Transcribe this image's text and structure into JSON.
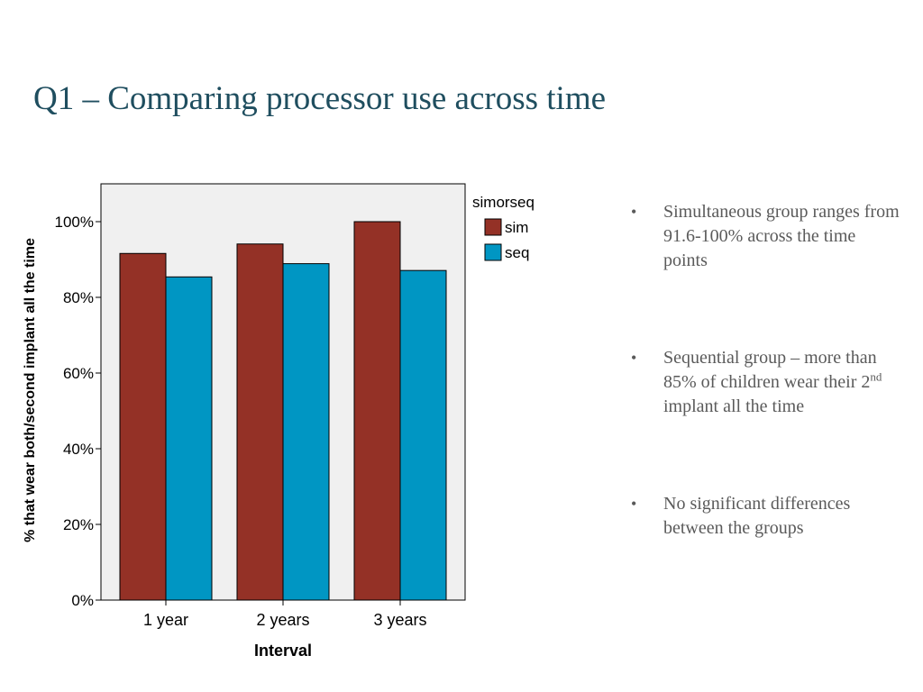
{
  "slide": {
    "title": "Q1 – Comparing processor use across time"
  },
  "bullets": [
    {
      "text": "Simultaneous group ranges from 91.6-100% across the time points"
    },
    {
      "text_before": "Sequential group – more than 85% of children wear their 2",
      "sup": "nd",
      "text_after": " implant all the time"
    },
    {
      "text": "No significant differences between the groups"
    }
  ],
  "chart_data": {
    "type": "bar",
    "categories": [
      "1 year",
      "2 years",
      "3 years"
    ],
    "series": [
      {
        "name": "sim",
        "color": "#943126",
        "values": [
          91.6,
          94.1,
          100.0
        ]
      },
      {
        "name": "seq",
        "color": "#0096c3",
        "values": [
          85.4,
          88.9,
          87.1
        ]
      }
    ],
    "xlabel": "Interval",
    "ylabel": "% that wear both/second implant all the time",
    "ylim": [
      0,
      100
    ],
    "yticks": [
      "0%",
      "20%",
      "40%",
      "60%",
      "80%",
      "100%"
    ],
    "ytick_values": [
      0,
      20,
      40,
      60,
      80,
      100
    ],
    "legend_title": "simorseq",
    "legend_position": "right",
    "plot_background": "#f0f0f0",
    "grid": false
  }
}
